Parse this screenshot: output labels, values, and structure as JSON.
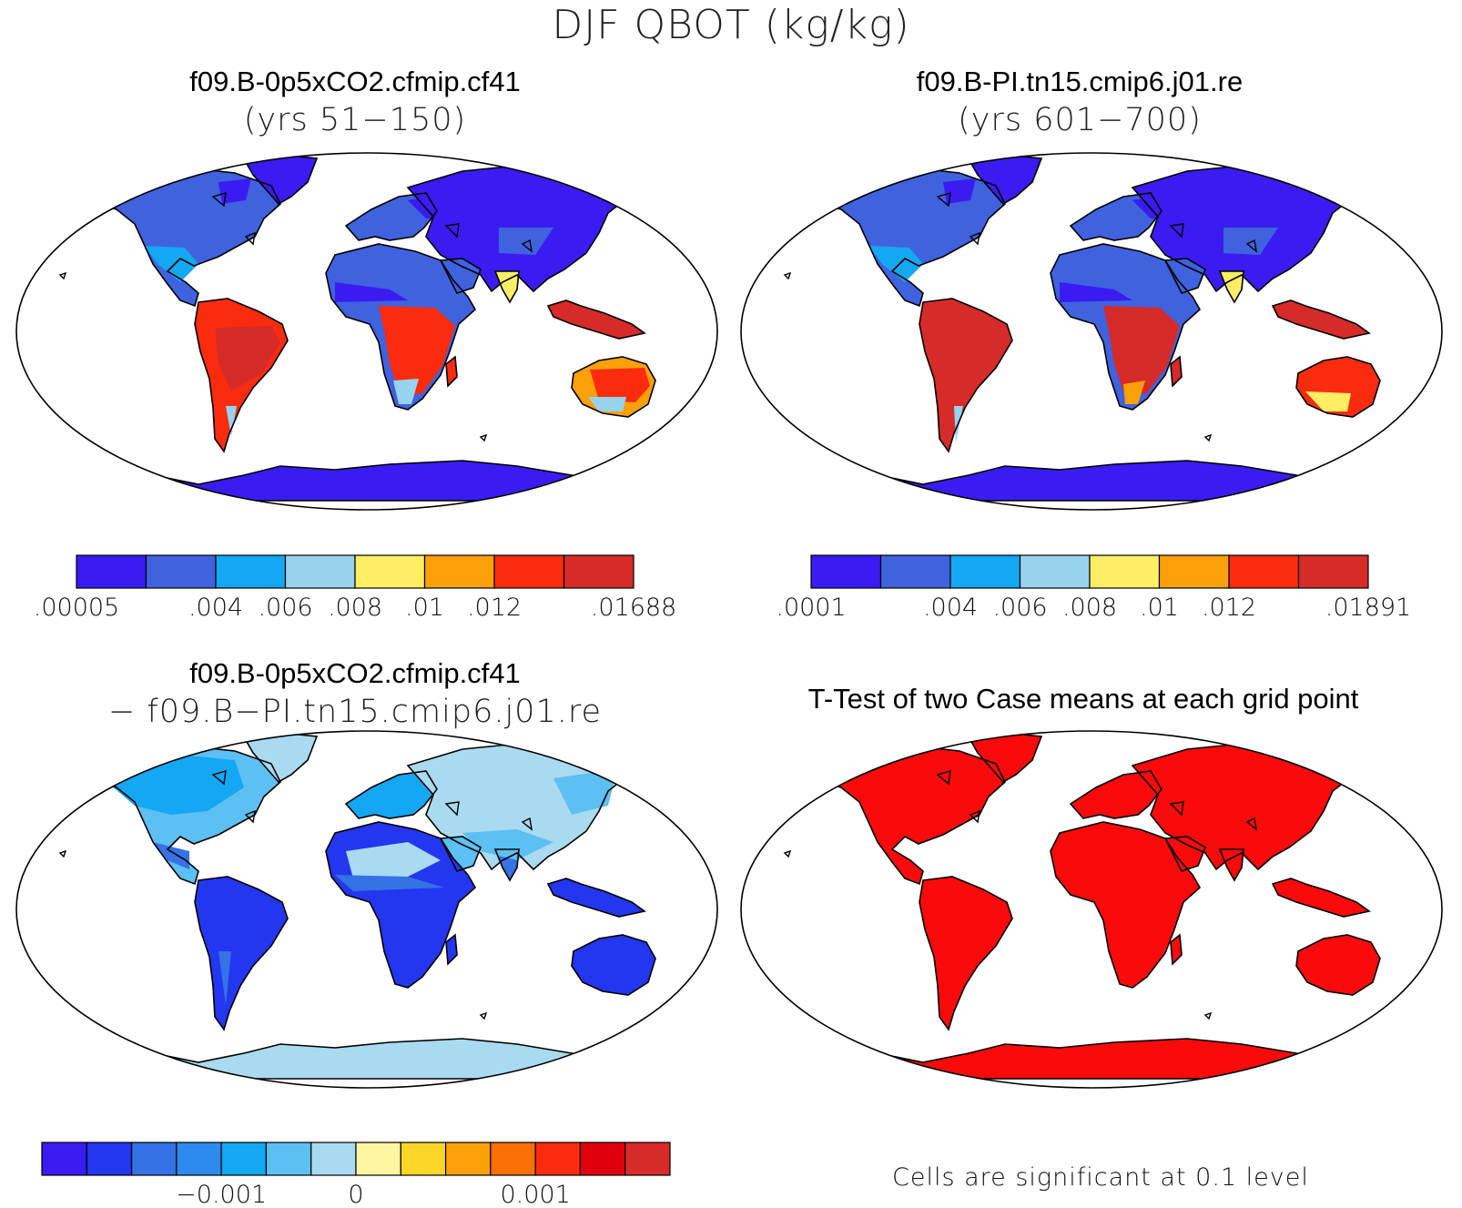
{
  "title": "DJF QBOT (kg/kg)",
  "panels": [
    {
      "id": "p1",
      "title_line1": "f09.B-0p5xCO2.cfmip.cf41",
      "title_line2": "(yrs 51−150)",
      "mode": "field",
      "colors": [
        "#3a1cf2",
        "#3f62df",
        "#14a7f3",
        "#97d3ee",
        "#fdee64",
        "#fba009",
        "#fb2c0d",
        "#d62b29"
      ],
      "tick_labels": [
        ".00005",
        ".004",
        ".006",
        ".008",
        ".01",
        ".012",
        ".01688"
      ],
      "tick_positions": [
        0,
        2,
        3,
        4,
        5,
        6,
        8
      ]
    },
    {
      "id": "p2",
      "title_line1": "f09.B-PI.tn15.cmip6.j01.re",
      "title_line2": "(yrs 601−700)",
      "mode": "field",
      "colors": [
        "#3a1cf2",
        "#3f62df",
        "#14a7f3",
        "#97d3ee",
        "#fdee64",
        "#fba009",
        "#fb2c0d",
        "#d62b29"
      ],
      "tick_labels": [
        ".0001",
        ".004",
        ".006",
        ".008",
        ".01",
        ".012",
        ".01891"
      ],
      "tick_positions": [
        0,
        2,
        3,
        4,
        5,
        6,
        8
      ]
    },
    {
      "id": "p3",
      "title_line1": "f09.B-0p5xCO2.cfmip.cf41",
      "title_line2": "− f09.B−PI.tn15.cmip6.j01.re",
      "mode": "diff",
      "colors": [
        "#3a1cf2",
        "#2336f0",
        "#3472e5",
        "#2d8bef",
        "#14a7f3",
        "#5cc0f2",
        "#a9daf0",
        "#fef6a0",
        "#fbd628",
        "#fba009",
        "#fa7004",
        "#fb2c0d",
        "#e0000c",
        "#d62b29"
      ],
      "tick_labels": [
        "−0.001",
        "0",
        "0.001"
      ],
      "tick_positions": [
        4,
        7,
        11
      ]
    },
    {
      "id": "p4",
      "title_line1": "T-Test of two Case means at each grid point",
      "title_line2": "",
      "mode": "ttest",
      "note": "Cells are significant at 0.1 level"
    }
  ],
  "map_colors": {
    "ttest_land": "#fa0a0a",
    "coast": "#000000",
    "ocean": "#ffffff"
  }
}
